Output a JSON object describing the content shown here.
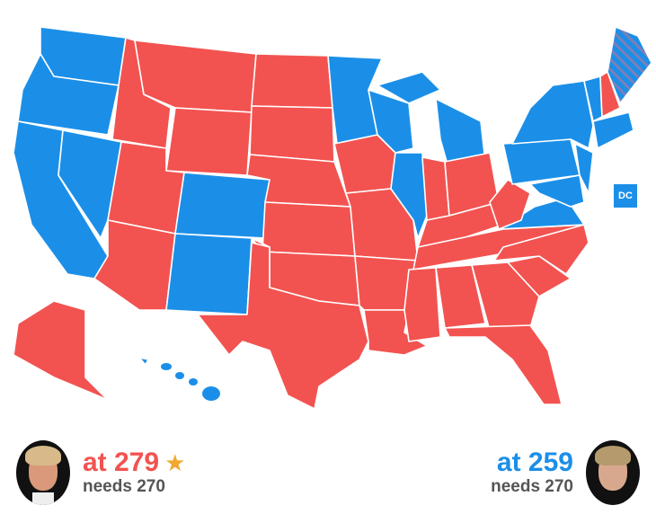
{
  "colors": {
    "republican": "#f25350",
    "democrat": "#1b8fe8",
    "split": "#4a7fc9",
    "star": "#f0a830",
    "needs": "#555555"
  },
  "states": {
    "WA": "D",
    "OR": "D",
    "CA": "D",
    "NV": "D",
    "ID": "R",
    "MT": "R",
    "WY": "R",
    "UT": "R",
    "AZ": "R",
    "CO": "D",
    "NM": "D",
    "ND": "R",
    "SD": "R",
    "NE": "R",
    "KS": "R",
    "OK": "R",
    "TX": "R",
    "MN": "D",
    "IA": "R",
    "MO": "R",
    "AR": "R",
    "LA": "R",
    "WI": "D",
    "IL": "D",
    "MI": "D",
    "MI_UP": "D",
    "IN": "R",
    "OH": "R",
    "KY": "R",
    "TN": "R",
    "MS": "R",
    "AL": "R",
    "GA": "R",
    "FL": "R",
    "SC": "R",
    "NC": "R",
    "VA": "D",
    "WV": "R",
    "PA": "D",
    "NY": "D",
    "MD": "D",
    "NJ": "D",
    "VT": "D",
    "NH": "R",
    "ME": "split",
    "NE3": "D",
    "AK": "R",
    "HI": "D"
  },
  "dc": {
    "label": "DC",
    "winner": "D"
  },
  "candidates": [
    {
      "name_icon": "trump-photo",
      "score": "at 279",
      "needs": "needs 270",
      "winner_icon": "star-icon",
      "star": "★"
    },
    {
      "name_icon": "clinton-photo",
      "score": "at 259",
      "needs": "needs 270"
    }
  ]
}
